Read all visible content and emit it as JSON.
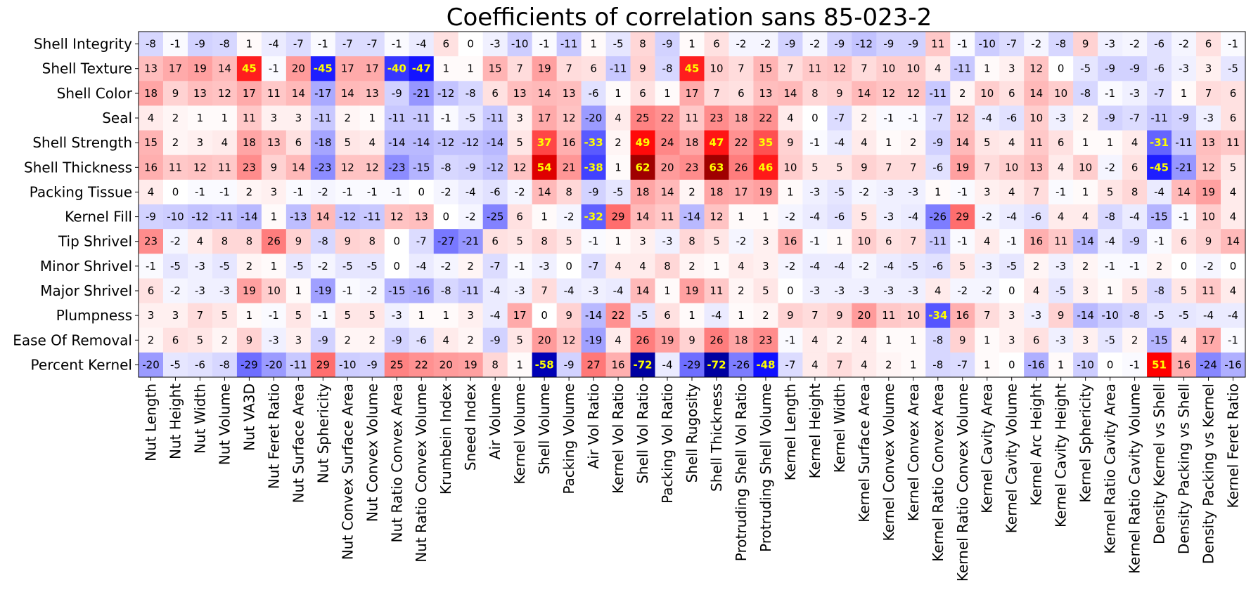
{
  "chart_data": {
    "type": "heatmap",
    "title": "Coefficients of correlation sans 85-023-2",
    "rows": [
      "Shell Integrity",
      "Shell Texture",
      "Shell Color",
      "Seal",
      "Shell Strength",
      "Shell Thickness",
      "Packing Tissue",
      "Kernel Fill",
      "Tip Shrivel",
      "Minor Shrivel",
      "Major Shrivel",
      "Plumpness",
      "Ease Of Removal",
      "Percent Kernel"
    ],
    "columns": [
      "Nut Length",
      "Nut Height",
      "Nut Width",
      "Nut Volume",
      "Nut VA3D",
      "Nut Feret Ratio",
      "Nut Surface Area",
      "Nut Sphericity",
      "Nut Convex Surface Area",
      "Nut Convex Volume",
      "Nut Ratio Convex Area",
      "Nut Ratio Convex Volume",
      "Krumbein Index",
      "Sneed Index",
      "Air Volume",
      "Kernel Volume",
      "Shell Volume",
      "Packing Volume",
      "Air Vol Ratio",
      "Kernel Vol Ratio",
      "Shell Vol Ratio",
      "Packing Vol Ratio",
      "Shell Rugosity",
      "Shell Thickness",
      "Protruding Shell Vol Ratio",
      "Protruding Shell Volume",
      "Kernel Length",
      "Kernel Height",
      "Kernel Width",
      "Kernel Surface Area",
      "Kernel Convex Volume",
      "Kernel Convex Area",
      "Kernel Ratio Convex Area",
      "Kernel Ratio Convex Volume",
      "Kernel Cavity Area",
      "Kernel Cavity Volume",
      "Kernel Arc Height",
      "Kernel Cavity Height",
      "Kernel Sphericity",
      "Kernel Ratio Cavity Area",
      "Kernel Ratio Cavity Volume",
      "Density Kernel vs Shell",
      "Density Packing vs Shell",
      "Density Packing vs Kernel",
      "Kernel Feret Ratio"
    ],
    "values": [
      [
        -8,
        -1,
        -9,
        -8,
        1,
        -4,
        -7,
        -1,
        -7,
        -7,
        -1,
        -4,
        6,
        0,
        -3,
        -10,
        -1,
        -11,
        1,
        -5,
        8,
        -9,
        1,
        6,
        -2,
        -2,
        -9,
        -2,
        -9,
        -12,
        -9,
        -9,
        11,
        -1,
        -10,
        -7,
        -2,
        -8,
        9,
        -3,
        -2,
        -6,
        -2,
        6,
        -1
      ],
      [
        13,
        17,
        19,
        14,
        45,
        -1,
        20,
        -45,
        17,
        17,
        -40,
        -47,
        1,
        1,
        15,
        7,
        19,
        7,
        6,
        -11,
        9,
        -8,
        45,
        10,
        7,
        15,
        7,
        11,
        12,
        7,
        10,
        10,
        4,
        -11,
        1,
        3,
        12,
        0,
        -5,
        -9,
        -9,
        -6,
        -3,
        3,
        -5
      ],
      [
        18,
        9,
        13,
        12,
        17,
        11,
        14,
        -17,
        14,
        13,
        -9,
        -21,
        -12,
        -8,
        6,
        13,
        14,
        13,
        -6,
        1,
        6,
        1,
        17,
        7,
        6,
        13,
        14,
        8,
        9,
        14,
        12,
        12,
        -11,
        2,
        10,
        6,
        14,
        10,
        -8,
        -1,
        -3,
        -7,
        1,
        7,
        6
      ],
      [
        4,
        2,
        1,
        1,
        11,
        3,
        3,
        -11,
        2,
        1,
        -11,
        -11,
        -1,
        -5,
        -11,
        3,
        17,
        12,
        -20,
        4,
        25,
        22,
        11,
        23,
        18,
        22,
        4,
        0,
        -7,
        2,
        -1,
        -1,
        -7,
        12,
        -4,
        -6,
        10,
        -3,
        2,
        -9,
        -7,
        -11,
        -9,
        -3,
        6
      ],
      [
        15,
        2,
        3,
        4,
        18,
        13,
        6,
        -18,
        5,
        4,
        -14,
        -14,
        -12,
        -12,
        -14,
        5,
        37,
        16,
        -33,
        2,
        49,
        24,
        18,
        47,
        22,
        35,
        9,
        -1,
        -4,
        4,
        1,
        2,
        -9,
        14,
        5,
        4,
        11,
        6,
        1,
        1,
        4,
        -31,
        -11,
        13,
        11
      ],
      [
        16,
        11,
        12,
        11,
        23,
        9,
        14,
        -23,
        12,
        12,
        -23,
        -15,
        -8,
        -9,
        -12,
        12,
        54,
        21,
        -38,
        1,
        62,
        20,
        23,
        63,
        26,
        46,
        10,
        5,
        5,
        9,
        7,
        7,
        -6,
        19,
        7,
        10,
        13,
        4,
        10,
        -2,
        6,
        -45,
        -21,
        12,
        5
      ],
      [
        4,
        0,
        -1,
        -1,
        2,
        3,
        -1,
        -2,
        -1,
        -1,
        -1,
        0,
        -2,
        -4,
        -6,
        -2,
        14,
        8,
        -9,
        -5,
        18,
        14,
        2,
        18,
        17,
        19,
        1,
        -3,
        -5,
        -2,
        -3,
        -3,
        1,
        -1,
        3,
        4,
        7,
        -1,
        1,
        5,
        8,
        -4,
        14,
        19,
        4
      ],
      [
        -9,
        -10,
        -12,
        -11,
        -14,
        1,
        -13,
        14,
        -12,
        -11,
        12,
        13,
        0,
        -2,
        -25,
        6,
        1,
        -2,
        -32,
        29,
        14,
        11,
        -14,
        12,
        1,
        1,
        -2,
        -4,
        -6,
        5,
        -3,
        -4,
        -26,
        29,
        -2,
        -4,
        -6,
        4,
        4,
        -8,
        -4,
        -15,
        -1,
        10,
        4
      ],
      [
        23,
        -2,
        4,
        8,
        8,
        26,
        9,
        -8,
        9,
        8,
        0,
        -7,
        -27,
        -21,
        6,
        5,
        8,
        5,
        -1,
        1,
        3,
        -3,
        8,
        5,
        -2,
        3,
        16,
        -1,
        1,
        10,
        6,
        7,
        -11,
        -1,
        4,
        -1,
        16,
        11,
        -14,
        -4,
        -9,
        -1,
        6,
        9,
        14
      ],
      [
        -1,
        -5,
        -3,
        -5,
        2,
        1,
        -5,
        -2,
        -5,
        -5,
        0,
        -4,
        -2,
        2,
        -7,
        -1,
        -3,
        0,
        -7,
        4,
        4,
        8,
        2,
        1,
        4,
        3,
        -2,
        -4,
        -4,
        -2,
        -4,
        -5,
        -6,
        5,
        -3,
        -5,
        2,
        -3,
        2,
        -1,
        -1,
        2,
        0,
        -2,
        0
      ],
      [
        6,
        -2,
        -3,
        -3,
        19,
        10,
        1,
        -19,
        -1,
        -2,
        -15,
        -16,
        -8,
        -11,
        -4,
        -3,
        7,
        -4,
        -3,
        -4,
        14,
        1,
        19,
        11,
        2,
        5,
        0,
        -3,
        -3,
        -3,
        -3,
        -3,
        4,
        -2,
        -2,
        0,
        4,
        -5,
        3,
        1,
        5,
        -8,
        5,
        11,
        4
      ],
      [
        3,
        3,
        7,
        5,
        1,
        -1,
        5,
        -1,
        5,
        5,
        -3,
        1,
        1,
        3,
        -4,
        17,
        0,
        9,
        -14,
        22,
        -5,
        6,
        1,
        -4,
        1,
        2,
        9,
        7,
        9,
        20,
        11,
        10,
        -34,
        16,
        7,
        3,
        -3,
        9,
        -14,
        -10,
        -8,
        -5,
        -5,
        -4,
        -4
      ],
      [
        2,
        6,
        5,
        2,
        9,
        -3,
        3,
        -9,
        2,
        2,
        -9,
        -6,
        4,
        2,
        -9,
        5,
        20,
        12,
        -19,
        4,
        26,
        19,
        9,
        26,
        18,
        23,
        -1,
        4,
        2,
        4,
        1,
        1,
        -8,
        9,
        1,
        3,
        6,
        -3,
        3,
        -5,
        2,
        -15,
        4,
        17,
        -1
      ],
      [
        -20,
        -5,
        -6,
        -8,
        -29,
        -20,
        -11,
        29,
        -10,
        -9,
        25,
        22,
        20,
        19,
        8,
        1,
        -58,
        -9,
        27,
        16,
        -72,
        -4,
        -29,
        -72,
        -26,
        -48,
        -7,
        4,
        7,
        4,
        2,
        1,
        -8,
        -7,
        1,
        0,
        -16,
        1,
        -10,
        0,
        -1,
        51,
        16,
        -24,
        -16
      ]
    ],
    "vmin": -60,
    "vmax": 60,
    "colormap": "bwr",
    "highlight_threshold": 30,
    "colors": {
      "negative": "#0000ff",
      "zero": "#ffffff",
      "positive": "#ff0000",
      "deep_negative": "#0000a0",
      "deep_positive": "#a00000",
      "highlight_text": "#ffff00",
      "normal_text": "#000000"
    }
  }
}
